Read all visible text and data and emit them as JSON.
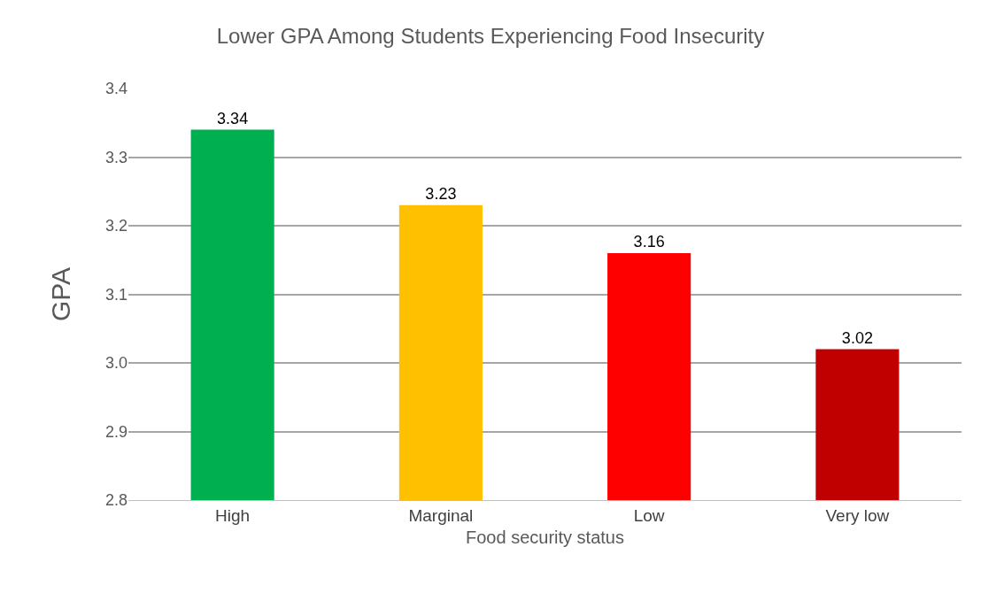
{
  "chart_data": {
    "type": "bar",
    "title": "Lower GPA Among Students Experiencing Food Insecurity",
    "xlabel": "Food security status",
    "ylabel": "GPA",
    "categories": [
      "High",
      "Marginal",
      "Low",
      "Very low"
    ],
    "values": [
      3.34,
      3.23,
      3.16,
      3.02
    ],
    "colors": [
      "#00b050",
      "#ffc000",
      "#ff0000",
      "#c00000"
    ],
    "ylim": [
      2.8,
      3.4
    ],
    "yticks": [
      2.8,
      2.9,
      {
        "value": 3.0,
        "label": "3.0"
      },
      3.1,
      3.2,
      3.3,
      3.4
    ],
    "grid": "y",
    "data_labels": true
  }
}
